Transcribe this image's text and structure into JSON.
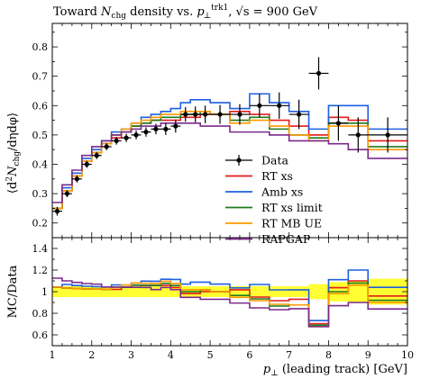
{
  "chart_data": {
    "type": "line",
    "title": "Toward N_chg density vs. p_⊥^trk1, √s = 900 GeV",
    "title_parts": {
      "pre": "Toward ",
      "N": "N",
      "N_sub": "chg",
      "mid": " density vs. ",
      "p": "p",
      "p_sub": "⊥",
      "p_sup": "trk1",
      "post": ", √s = 900 GeV"
    },
    "ylabel_main": "⟨d²N_chg/dηdφ⟩",
    "ylabel_main_parts": {
      "pre": "⟨d",
      "sup": "2",
      "N": "N",
      "sub": "chg",
      "post": "/dηdφ⟩"
    },
    "ylabel_ratio": "MC/Data",
    "xlabel": "p_⊥ (leading track) [GeV]",
    "xlabel_parts": {
      "p": "p",
      "sub": "⊥",
      "post": " (leading track) [GeV]"
    },
    "xlim": [
      1,
      10
    ],
    "ylim_main": [
      0.15,
      0.88
    ],
    "ylim_ratio": [
      0.5,
      1.5
    ],
    "x_ticks": [
      1,
      2,
      3,
      4,
      5,
      6,
      7,
      8,
      9,
      10
    ],
    "y_ticks_main": [
      0.2,
      0.3,
      0.4,
      0.5,
      0.6,
      0.7,
      0.8
    ],
    "y_ticks_ratio": [
      0.6,
      0.8,
      1,
      1.2,
      1.4
    ],
    "legend_position": "right-center",
    "legend": [
      {
        "label": "Data",
        "color": "#000000",
        "style": "marker"
      },
      {
        "label": "RT xs",
        "color": "#e41a1c",
        "style": "line"
      },
      {
        "label": "Amb xs",
        "color": "#1f5fe0",
        "style": "line"
      },
      {
        "label": "RT xs limit",
        "color": "#1e7a1e",
        "style": "line"
      },
      {
        "label": "RT MB UE",
        "color": "#ff9900",
        "style": "line"
      },
      {
        "label": "RAPGAP",
        "color": "#7b2a8c",
        "style": "line"
      }
    ],
    "bin_edges": [
      1.0,
      1.25,
      1.5,
      1.75,
      2.0,
      2.25,
      2.5,
      2.75,
      3.0,
      3.25,
      3.5,
      3.75,
      4.0,
      4.25,
      4.5,
      4.75,
      5.0,
      5.5,
      6.0,
      6.5,
      7.0,
      7.5,
      8.0,
      8.5,
      9.0,
      10.0
    ],
    "data": {
      "y": [
        0.24,
        0.3,
        0.35,
        0.4,
        0.43,
        0.46,
        0.48,
        0.49,
        0.5,
        0.51,
        0.52,
        0.52,
        0.53,
        0.57,
        0.57,
        0.57,
        0.57,
        0.57,
        0.6,
        0.6,
        0.57,
        0.71,
        0.54,
        0.5,
        0.5
      ],
      "yerr": [
        0.015,
        0.012,
        0.012,
        0.012,
        0.012,
        0.012,
        0.013,
        0.014,
        0.015,
        0.016,
        0.018,
        0.02,
        0.022,
        0.025,
        0.027,
        0.03,
        0.032,
        0.035,
        0.04,
        0.045,
        0.05,
        0.055,
        0.06,
        0.06,
        0.06
      ],
      "ratio_band": [
        0.05,
        0.05,
        0.05,
        0.05,
        0.05,
        0.05,
        0.05,
        0.05,
        0.05,
        0.05,
        0.05,
        0.05,
        0.05,
        0.05,
        0.05,
        0.05,
        0.05,
        0.05,
        0.05,
        0.05,
        0.05,
        0.07,
        0.09,
        0.1,
        0.12
      ]
    },
    "series": [
      {
        "name": "RT xs",
        "color": "#e41a1c",
        "values": [
          0.25,
          0.31,
          0.36,
          0.41,
          0.44,
          0.47,
          0.49,
          0.51,
          0.53,
          0.54,
          0.55,
          0.55,
          0.55,
          0.56,
          0.56,
          0.57,
          0.57,
          0.58,
          0.57,
          0.55,
          0.53,
          0.5,
          0.56,
          0.55,
          0.48
        ]
      },
      {
        "name": "Amb xs",
        "color": "#1f5fe0",
        "values": [
          0.25,
          0.32,
          0.37,
          0.42,
          0.45,
          0.48,
          0.51,
          0.52,
          0.54,
          0.56,
          0.57,
          0.58,
          0.59,
          0.61,
          0.62,
          0.62,
          0.61,
          0.59,
          0.64,
          0.61,
          0.58,
          0.52,
          0.6,
          0.6,
          0.52
        ]
      },
      {
        "name": "RT xs limit",
        "color": "#1e7a1e",
        "values": [
          0.25,
          0.31,
          0.36,
          0.41,
          0.44,
          0.47,
          0.5,
          0.51,
          0.53,
          0.54,
          0.55,
          0.56,
          0.56,
          0.57,
          0.57,
          0.58,
          0.57,
          0.55,
          0.56,
          0.52,
          0.5,
          0.49,
          0.54,
          0.54,
          0.46
        ]
      },
      {
        "name": "RT MB UE",
        "color": "#ff9900",
        "values": [
          0.25,
          0.31,
          0.36,
          0.41,
          0.44,
          0.47,
          0.5,
          0.52,
          0.54,
          0.55,
          0.56,
          0.57,
          0.57,
          0.58,
          0.58,
          0.58,
          0.57,
          0.54,
          0.55,
          0.53,
          0.5,
          0.48,
          0.53,
          0.53,
          0.45
        ]
      },
      {
        "name": "RAPGAP",
        "color": "#7b2a8c",
        "values": [
          0.27,
          0.33,
          0.38,
          0.43,
          0.46,
          0.48,
          0.5,
          0.51,
          0.52,
          0.53,
          0.53,
          0.54,
          0.54,
          0.54,
          0.54,
          0.53,
          0.53,
          0.51,
          0.51,
          0.5,
          0.48,
          0.48,
          0.47,
          0.45,
          0.42
        ]
      }
    ]
  }
}
